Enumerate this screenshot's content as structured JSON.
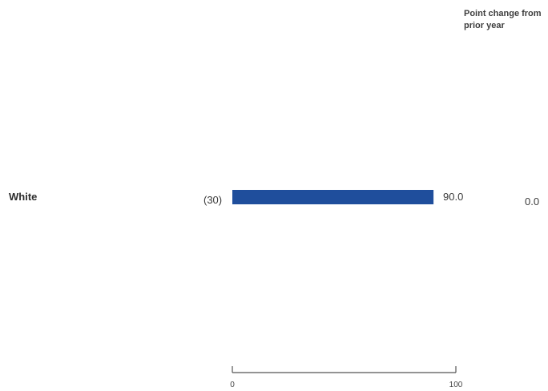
{
  "header": {
    "change_title": "Point change from prior year"
  },
  "chart_data": {
    "type": "bar",
    "orientation": "horizontal",
    "categories": [
      "White"
    ],
    "values": [
      90.0
    ],
    "value_labels": [
      "90.0"
    ],
    "n_labels": [
      "(30)"
    ],
    "change_values": [
      "0.0"
    ],
    "xlim": [
      0,
      100
    ],
    "x_tick_labels": [
      "0",
      "100"
    ],
    "bar_color": "#1f4e9c"
  }
}
